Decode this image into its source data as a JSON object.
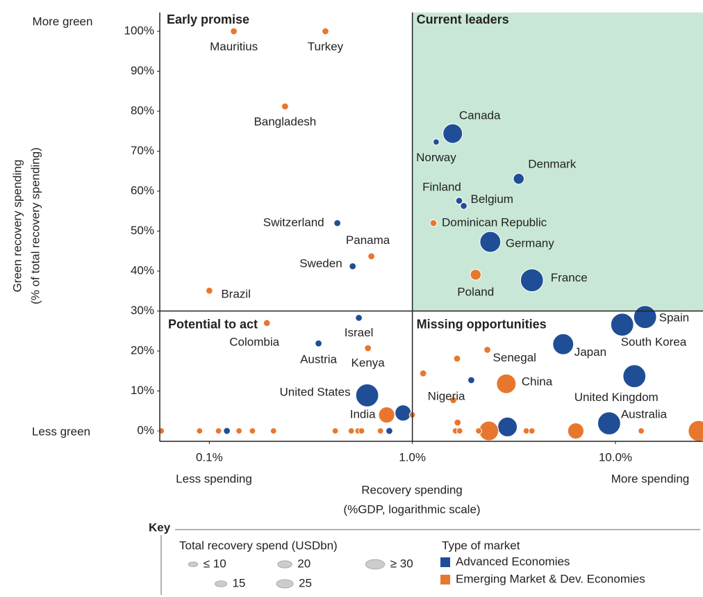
{
  "chart_data": {
    "type": "bubble",
    "y_axis_label": [
      "Green recovery spending",
      "(% of total recovery spending)"
    ],
    "x_axis_label": [
      "Recovery spending",
      "(%GDP, logarithmic scale)"
    ],
    "annotations": {
      "top": "More green",
      "bottom": "Less green",
      "left": "Less spending",
      "right": "More spending"
    },
    "quadrants": {
      "top_left": "Early promise",
      "top_right": "Current leaders",
      "bottom_left": "Potential to act",
      "bottom_right": "Missing opportunities"
    },
    "thresholds": {
      "x": 1,
      "y": 30
    },
    "quadrant_color": "#c9e7d7",
    "log_x": true,
    "xlim": [
      0.057,
      27
    ],
    "ylim": [
      -2.6,
      104.7
    ],
    "xticks": [
      {
        "value": 0.1,
        "label": "0.1%"
      },
      {
        "value": 1,
        "label": "1.0%"
      },
      {
        "value": 10,
        "label": "10.0%"
      }
    ],
    "yticks": [
      {
        "value": 0,
        "label": "0%"
      },
      {
        "value": 10,
        "label": "10%"
      },
      {
        "value": 20,
        "label": "20%"
      },
      {
        "value": 30,
        "label": "30%"
      },
      {
        "value": 40,
        "label": "40%"
      },
      {
        "value": 50,
        "label": "50%"
      },
      {
        "value": 60,
        "label": "60%"
      },
      {
        "value": 70,
        "label": "70%"
      },
      {
        "value": 80,
        "label": "80%"
      },
      {
        "value": 90,
        "label": "90%"
      },
      {
        "value": 100,
        "label": "100%"
      }
    ],
    "series": [
      {
        "name": "Advanced Economies",
        "color": "#1f4e96",
        "labels": [
          "Canada",
          "Norway",
          "Denmark",
          "Finland",
          "Belgium",
          "Switzerland",
          "Germany",
          "Sweden",
          "France",
          "Israel",
          "Austria",
          "United States",
          null,
          null,
          null,
          "Spain",
          "South Korea",
          "Japan",
          "United Kingdom",
          "Australia",
          null,
          null
        ],
        "x": [
          1.58,
          1.31,
          3.34,
          1.7,
          1.79,
          0.427,
          2.42,
          0.508,
          3.88,
          0.545,
          0.345,
          0.599,
          0.9,
          1.95,
          2.94,
          14.0,
          10.8,
          5.53,
          12.4,
          9.31,
          0.122,
          0.77
        ],
        "values": [
          74.4,
          72.3,
          63.1,
          57.6,
          56.3,
          52.0,
          47.3,
          41.2,
          37.7,
          28.3,
          21.9,
          8.9,
          4.5,
          12.7,
          1.0,
          28.5,
          26.6,
          21.7,
          13.7,
          1.9,
          0,
          0
        ],
        "sizes": [
          25,
          5,
          12,
          6,
          6,
          6,
          27,
          6,
          30,
          6,
          6,
          30,
          20,
          6,
          25,
          30,
          30,
          27,
          30,
          30,
          6,
          6
        ]
      },
      {
        "name": "Emerging Market & Dev. Economies",
        "color": "#e8772e",
        "labels": [
          "Mauritius",
          "Turkey",
          "Bangladesh",
          "Dominican Republic",
          "Panama",
          "Poland",
          "Brazil",
          "Colombia",
          "Kenya",
          "Senegal",
          null,
          null,
          "China",
          "Nigeria",
          "India",
          null,
          null,
          null,
          null,
          null,
          null,
          null,
          null,
          null,
          null,
          null,
          null,
          null,
          null,
          null,
          null,
          null,
          null,
          null,
          null,
          null,
          null
        ],
        "x": [
          0.132,
          0.373,
          0.236,
          1.27,
          0.628,
          2.05,
          0.1,
          0.192,
          0.604,
          2.34,
          1.66,
          1.13,
          2.9,
          1.59,
          0.747,
          1.0,
          2.38,
          6.38,
          25.7,
          1.67,
          0.058,
          0.0895,
          0.111,
          0.14,
          0.163,
          0.207,
          0.417,
          0.5,
          0.54,
          0.562,
          0.696,
          1.63,
          1.71,
          2.12,
          3.64,
          3.88,
          13.4
        ],
        "values": [
          100,
          100,
          81.2,
          52.0,
          43.7,
          39.1,
          35.1,
          27.0,
          20.7,
          20.3,
          18.1,
          14.4,
          11.8,
          7.7,
          4.0,
          4,
          0,
          0,
          0,
          2.1,
          0,
          0,
          0,
          0,
          0,
          0,
          0,
          0,
          0,
          0,
          0,
          0,
          0,
          0,
          0,
          0,
          0
        ],
        "sizes": [
          6,
          6,
          6,
          6,
          6,
          12,
          6,
          6,
          6,
          6,
          6,
          6,
          25,
          6,
          20,
          5,
          25,
          20,
          27,
          6,
          5,
          5,
          5,
          5,
          5,
          5,
          5,
          5,
          5,
          5,
          5,
          5,
          5,
          5,
          5,
          5,
          5
        ]
      }
    ],
    "legend": {
      "key": "Key",
      "size_title": "Total recovery spend (USDbn)",
      "size_labels": [
        "≤ 10",
        "15",
        "20",
        "25",
        "≥ 30"
      ],
      "size_values": [
        10,
        15,
        20,
        25,
        30
      ],
      "color_title": "Type of market"
    }
  }
}
